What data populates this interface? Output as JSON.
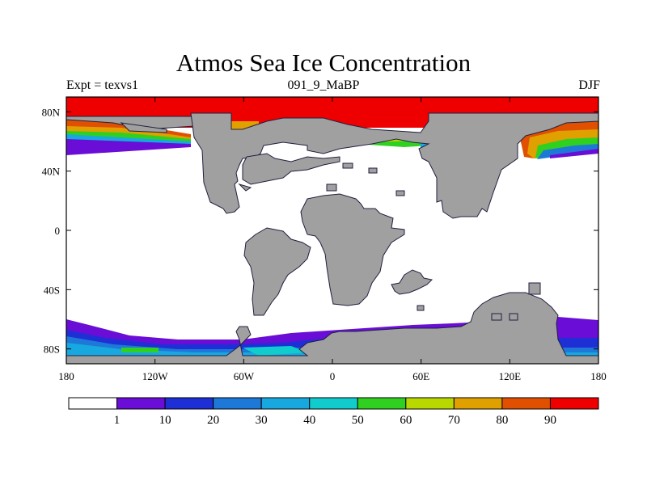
{
  "title": "Atmos Sea Ice Concentration",
  "subtitle_left": "Expt = texvs1",
  "subtitle_center": "091_9_MaBP",
  "subtitle_right": "DJF",
  "axes": {
    "x_ticks": [
      {
        "value": -180,
        "label": "180"
      },
      {
        "value": -120,
        "label": "120W"
      },
      {
        "value": -60,
        "label": "60W"
      },
      {
        "value": 0,
        "label": "0"
      },
      {
        "value": 60,
        "label": "60E"
      },
      {
        "value": 120,
        "label": "120E"
      },
      {
        "value": 180,
        "label": "180"
      }
    ],
    "y_ticks": [
      {
        "value": 80,
        "label": "80N"
      },
      {
        "value": 40,
        "label": "40N"
      },
      {
        "value": 0,
        "label": "0"
      },
      {
        "value": -40,
        "label": "40S"
      },
      {
        "value": -80,
        "label": "80S"
      }
    ],
    "lon_range": [
      -180,
      180
    ],
    "lat_range": [
      -90,
      90
    ]
  },
  "colorbar": {
    "labels": [
      "1",
      "10",
      "20",
      "30",
      "40",
      "50",
      "60",
      "70",
      "80",
      "90"
    ],
    "colors": [
      "#ffffff",
      "#6a0dd6",
      "#1e2fd6",
      "#1e78d8",
      "#18a8e0",
      "#10cccc",
      "#30d020",
      "#b8d800",
      "#e0a000",
      "#e05000",
      "#ee0000"
    ]
  },
  "colors": {
    "land": "#a0a0a0",
    "ocean": "#ffffff",
    "ice_high": "#ee0000"
  }
}
